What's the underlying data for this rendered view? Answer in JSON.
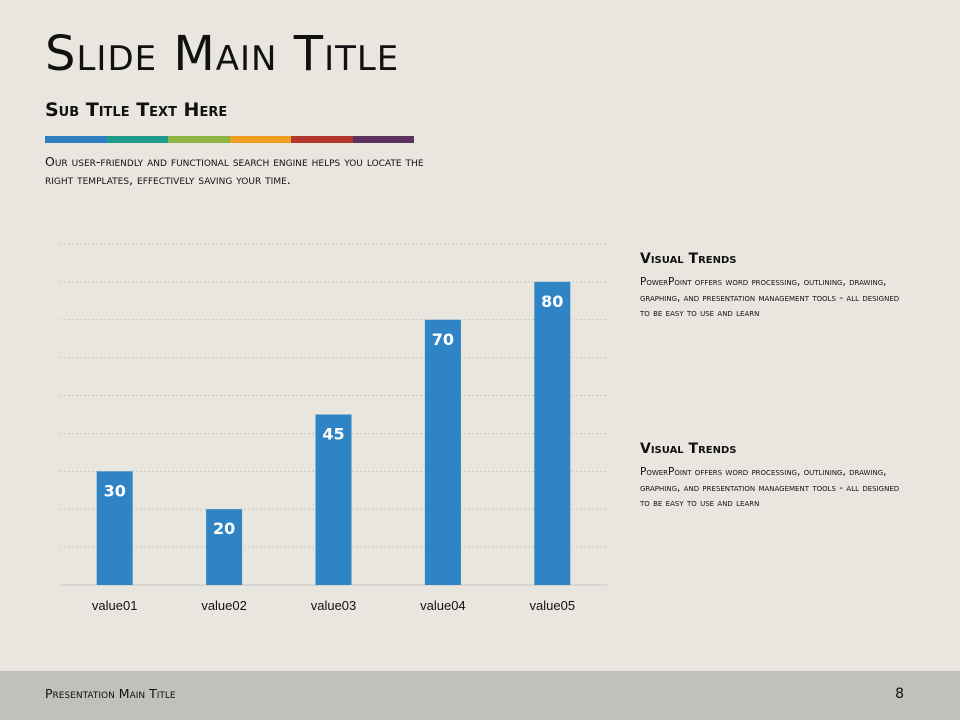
{
  "slide": {
    "title": "Slide Main Title",
    "subtitle": "Sub Title Text Here",
    "intro": "Our user-friendly and functional search engine helps you locate the right templates, effectively saving your time.",
    "strip_colors": [
      "#2e7fc1",
      "#1e9b8a",
      "#8fb444",
      "#f0a020",
      "#b3392e",
      "#5c3160"
    ]
  },
  "trends": [
    {
      "title": "Visual Trends",
      "body": "PowerPoint offers word processing, outlining, drawing, graphing, and presentation management tools - all designed to be easy to use and learn"
    },
    {
      "title": "Visual Trends",
      "body": "PowerPoint offers word processing, outlining, drawing, graphing, and presentation management tools - all designed to be easy to use and learn"
    }
  ],
  "footer": {
    "title": "Presentation Main Title",
    "page": "8"
  },
  "chart_data": {
    "type": "bar",
    "categories": [
      "value01",
      "value02",
      "value03",
      "value04",
      "value05"
    ],
    "values": [
      30,
      20,
      45,
      70,
      80
    ],
    "ylim": [
      0,
      90
    ],
    "grid": true,
    "bar_color": "#2e84c4",
    "label_color": "#ffffff"
  }
}
